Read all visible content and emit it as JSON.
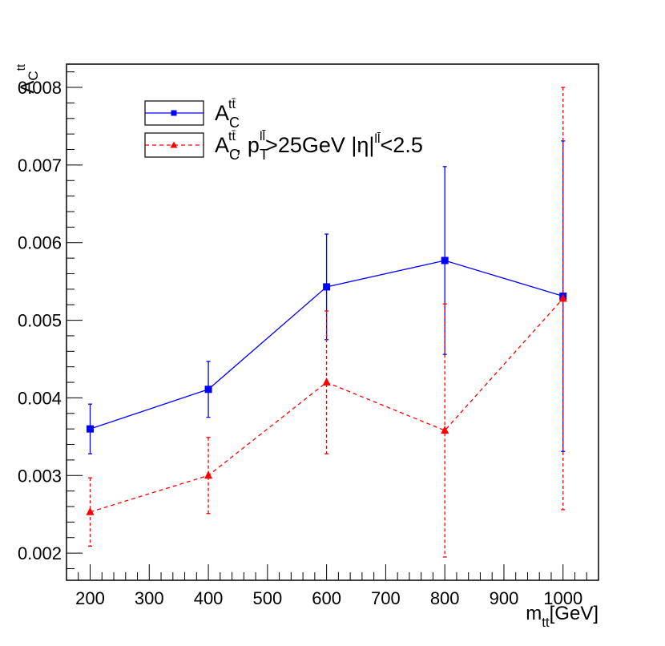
{
  "chart_data": {
    "type": "line",
    "title": "",
    "xlabel": {
      "main": "m",
      "sub": "tt",
      "unit": "[GeV]"
    },
    "ylabel": {
      "main": "A",
      "sub": "C",
      "sup": "tt"
    },
    "xlim": [
      160,
      1060
    ],
    "ylim": [
      0.00165,
      0.0083
    ],
    "x_ticks": [
      200,
      300,
      400,
      500,
      600,
      700,
      800,
      900,
      1000
    ],
    "x_tick_labels": [
      "200",
      "300",
      "400",
      "500",
      "600",
      "700",
      "800",
      "900",
      "1000"
    ],
    "y_ticks": [
      0.002,
      0.003,
      0.004,
      0.005,
      0.006,
      0.007,
      0.008
    ],
    "y_tick_labels": [
      "0.002",
      "0.003",
      "0.004",
      "0.005",
      "0.006",
      "0.007",
      "0.008"
    ],
    "legend": {
      "position": "top-left",
      "entries": [
        {
          "main": "A",
          "sub": "C",
          "sup": "tt̄",
          "rest": ""
        },
        {
          "main": "A",
          "sub": "C",
          "sup": "tt̄",
          "rest": ", p",
          "rest_sub": "T",
          "rest_sup": "ll̄",
          "rest2": ">25GeV |η|",
          "rest2_sup": "ll̄",
          "rest3": "<2.5"
        }
      ]
    },
    "series": [
      {
        "color": "#0000ff",
        "marker": "square",
        "dashed": false,
        "points": [
          {
            "x": 200,
            "y": 0.0036,
            "err": 0.00032
          },
          {
            "x": 400,
            "y": 0.00411,
            "err": 0.00036
          },
          {
            "x": 600,
            "y": 0.00543,
            "err": 0.00068
          },
          {
            "x": 800,
            "y": 0.00577,
            "err": 0.00121
          },
          {
            "x": 1000,
            "y": 0.00531,
            "err": 0.002
          }
        ]
      },
      {
        "color": "#ff0000",
        "marker": "triangle",
        "dashed": true,
        "points": [
          {
            "x": 200,
            "y": 0.00253,
            "err": 0.00044
          },
          {
            "x": 400,
            "y": 0.003,
            "err": 0.00049
          },
          {
            "x": 600,
            "y": 0.0042,
            "err": 0.00092
          },
          {
            "x": 800,
            "y": 0.00358,
            "err": 0.00163
          },
          {
            "x": 1000,
            "y": 0.00528,
            "err": 0.00272
          }
        ]
      }
    ]
  }
}
